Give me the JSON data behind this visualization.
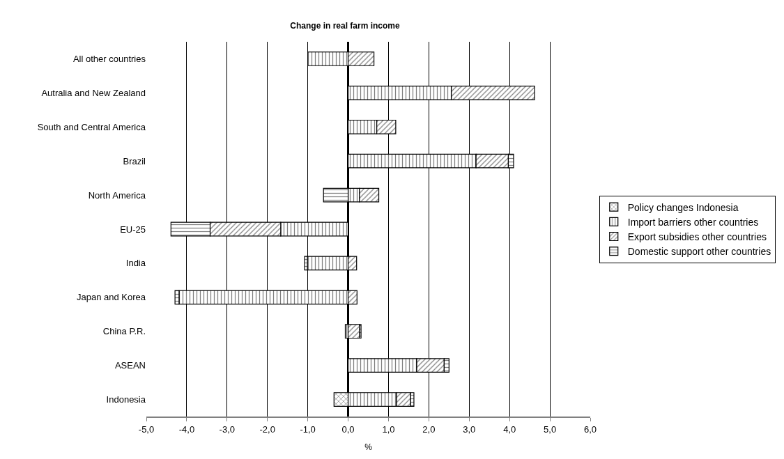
{
  "chart_data": {
    "type": "bar",
    "orientation": "horizontal",
    "stacked": true,
    "title": "Change in real farm income",
    "xlabel": "%",
    "categories": [
      "All other countries",
      "Autralia and New Zealand",
      "South and Central America",
      "Brazil",
      "North America",
      "EU-25",
      "India",
      "Japan and Korea",
      "China P.R.",
      "ASEAN",
      "Indonesia"
    ],
    "series": [
      {
        "name": "Policy changes Indonesia",
        "color": "#000000",
        "values": [
          null,
          null,
          null,
          null,
          null,
          null,
          null,
          null,
          null,
          null,
          -0.35
        ]
      },
      {
        "name": "Import barriers other countries",
        "color": "#000000",
        "values": [
          -1.0,
          2.56,
          0.71,
          3.17,
          0.28,
          -1.67,
          -1.01,
          -4.19,
          -0.07,
          1.7,
          1.2
        ]
      },
      {
        "name": "Export subsidies other countries",
        "color": "#000000",
        "values": [
          0.64,
          2.06,
          0.47,
          0.8,
          0.48,
          -1.75,
          0.21,
          0.22,
          0.28,
          0.68,
          0.35
        ]
      },
      {
        "name": "Domestic support other countries",
        "color": "#000000",
        "values": [
          null,
          null,
          null,
          0.13,
          -0.61,
          -0.97,
          -0.07,
          -0.1,
          0.04,
          0.12,
          0.08
        ]
      }
    ],
    "xlim": [
      -5,
      6
    ],
    "xticks": [
      {
        "value": -5,
        "label": "-5,0"
      },
      {
        "value": -4,
        "label": "-4,0"
      },
      {
        "value": -3,
        "label": "-3,0"
      },
      {
        "value": -2,
        "label": "-2,0"
      },
      {
        "value": -1,
        "label": "-1,0"
      },
      {
        "value": 0,
        "label": "0,0"
      },
      {
        "value": 1,
        "label": "1,0"
      },
      {
        "value": 2,
        "label": "2,0"
      },
      {
        "value": 3,
        "label": "3,0"
      },
      {
        "value": 4,
        "label": "4,0"
      },
      {
        "value": 5,
        "label": "5,0"
      },
      {
        "value": 6,
        "label": "6,0"
      }
    ],
    "grid": "x",
    "legend": "right"
  }
}
